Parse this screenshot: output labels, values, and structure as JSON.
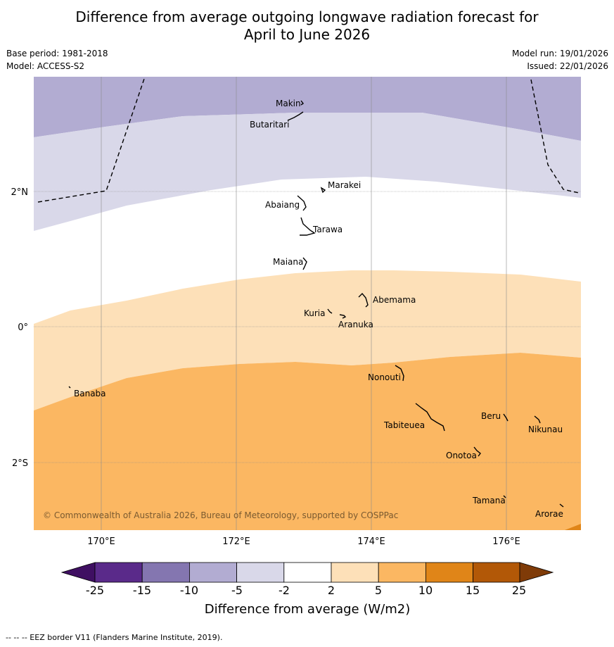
{
  "title": {
    "line1": "Difference from average outgoing longwave radiation forecast for",
    "line2": "April to June 2026"
  },
  "meta": {
    "base_period": "Base period: 1981-2018",
    "model": "Model: ACCESS-S2",
    "model_run": "Model run: 19/01/2026",
    "issued": "Issued: 22/01/2026"
  },
  "map": {
    "lat_labels": [
      "2°N",
      "0°",
      "2°S"
    ],
    "lon_labels": [
      "170°E",
      "172°E",
      "174°E",
      "176°E"
    ],
    "copyright": "© Commonwealth of Australia 2026, Bureau of Meteorology, supported by COSPPac",
    "islands": [
      {
        "name": "Makin"
      },
      {
        "name": "Butaritari"
      },
      {
        "name": "Marakei"
      },
      {
        "name": "Abaiang"
      },
      {
        "name": "Tarawa"
      },
      {
        "name": "Maiana"
      },
      {
        "name": "Abemama"
      },
      {
        "name": "Kuria"
      },
      {
        "name": "Aranuka"
      },
      {
        "name": "Banaba"
      },
      {
        "name": "Nonouti"
      },
      {
        "name": "Tabiteuea"
      },
      {
        "name": "Beru"
      },
      {
        "name": "Nikunau"
      },
      {
        "name": "Onotoa"
      },
      {
        "name": "Tamana"
      },
      {
        "name": "Arorae"
      }
    ]
  },
  "colorbar": {
    "ticks": [
      "-25",
      "-15",
      "-10",
      "-5",
      "-2",
      "2",
      "5",
      "10",
      "15",
      "25"
    ],
    "label": "Difference from average (W/m2)",
    "colors": {
      "lt_m25": "#3f0f62",
      "m25_m15": "#5a2a8a",
      "m15_m10": "#8476b0",
      "m10_m5": "#b2acd2",
      "m5_m2": "#d9d8e9",
      "m2_2": "#ffffff",
      "2_5": "#fde0b8",
      "5_10": "#fbb762",
      "10_15": "#e08518",
      "15_25": "#b25807",
      "gt_25": "#7f3b08"
    }
  },
  "footer": "--  --  -- EEZ border V11 (Flanders Marine Institute, 2019)."
}
